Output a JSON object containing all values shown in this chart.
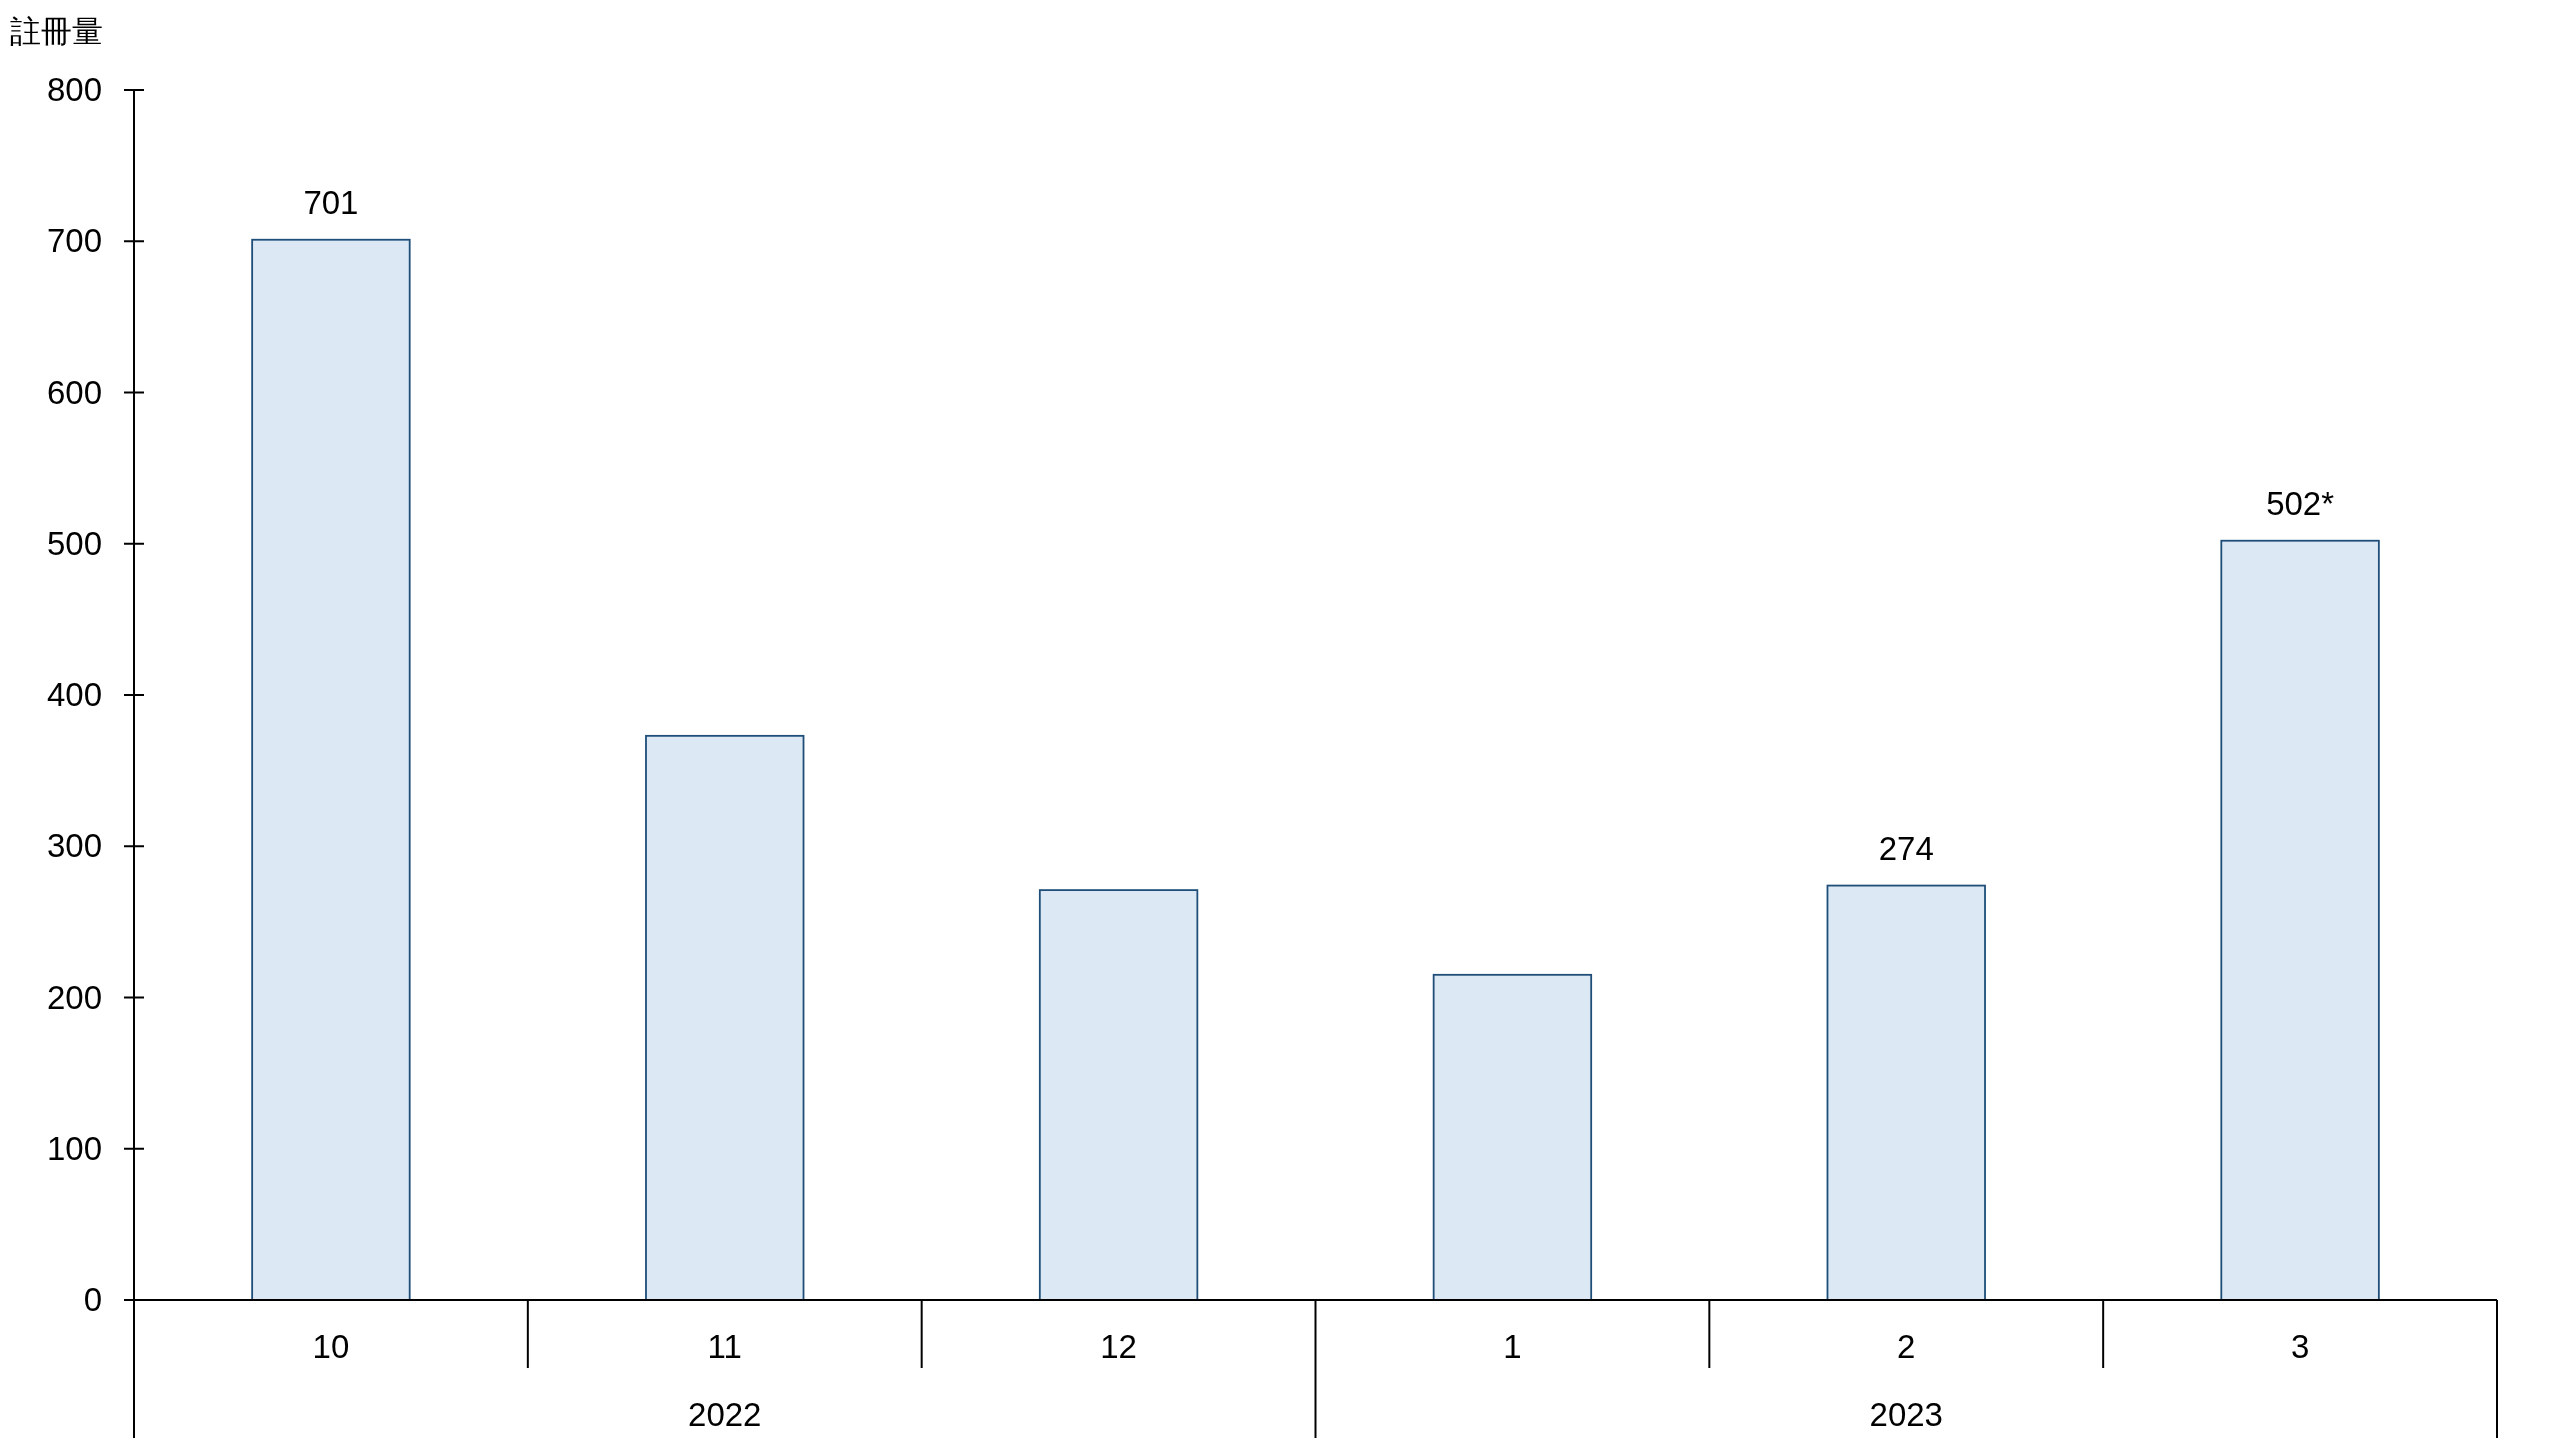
{
  "chart_data": {
    "type": "bar",
    "ylabel": "註冊量",
    "categories": [
      "10",
      "11",
      "12",
      "1",
      "2",
      "3"
    ],
    "values": [
      701,
      373,
      271,
      215,
      274,
      502
    ],
    "value_labels": [
      "701",
      null,
      null,
      null,
      "274",
      "502*"
    ],
    "color": "#dde8f5",
    "ylim": [
      0,
      800
    ],
    "yticks": [
      0,
      100,
      200,
      300,
      400,
      500,
      600,
      700,
      800
    ],
    "grid": false,
    "annotations": [
      "2022",
      "2023"
    ]
  }
}
